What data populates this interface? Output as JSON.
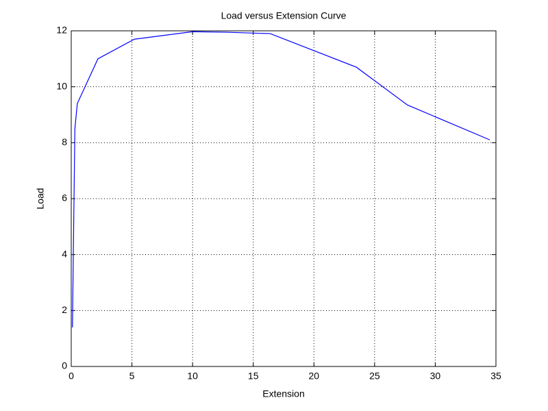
{
  "chart_data": {
    "type": "line",
    "title": "Load versus Extension Curve",
    "x_label": "Extension",
    "y_label": "Load",
    "x": [
      0.1,
      0.2,
      0.3,
      0.5,
      2.2,
      5.2,
      10,
      12.8,
      16.4,
      23.5,
      27.7,
      34.5
    ],
    "series": [
      {
        "name": "Load",
        "color": "#0000ff",
        "values": [
          1.4,
          5.0,
          8.5,
          9.4,
          11.0,
          11.7,
          11.97,
          11.95,
          11.9,
          10.7,
          9.35,
          8.1
        ]
      }
    ],
    "xlim": [
      0,
      35
    ],
    "ylim": [
      0,
      12
    ],
    "xticks": [
      0,
      5,
      10,
      15,
      20,
      25,
      30,
      35
    ],
    "yticks": [
      0,
      2,
      4,
      6,
      8,
      10,
      12
    ],
    "grid": true
  }
}
